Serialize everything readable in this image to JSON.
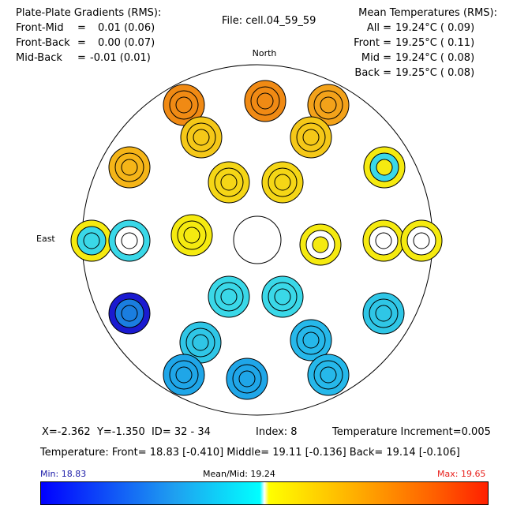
{
  "gradients": {
    "title": "Plate-Plate Gradients (RMS):",
    "rows": [
      {
        "label": "Front-Mid",
        "eq": "=",
        "value": "0.01 (0.06)"
      },
      {
        "label": "Front-Back",
        "eq": "=",
        "value": "0.00 (0.07)"
      },
      {
        "label": "Mid-Back",
        "eq": "=",
        "value": "-0.01 (0.01)"
      }
    ]
  },
  "file": "File: cell.04_59_59",
  "mean_temps": {
    "title": "Mean Temperatures (RMS):",
    "rows": [
      {
        "label": "All =",
        "value": "19.24°C ( 0.09)"
      },
      {
        "label": "Front =",
        "value": "19.25°C ( 0.11)"
      },
      {
        "label": "Mid =",
        "value": "19.24°C ( 0.08)"
      },
      {
        "label": "Back =",
        "value": "19.25°C ( 0.08)"
      }
    ]
  },
  "compass": {
    "north": "North",
    "east": "East"
  },
  "status": {
    "line1": "X=-2.362  Y=-1.350  ID= 32 - 34",
    "index": "Index: 8",
    "increment": "Temperature Increment=0.005",
    "line2": "Temperature: Front= 18.83 [-0.410] Middle= 19.11 [-0.136] Back= 19.14 [-0.106]"
  },
  "colorbar": {
    "min_label": "Min: 18.83",
    "mean_label": "Mean/Mid: 19.24",
    "max_label": "Max: 19.65",
    "min_color": "#1a1aa8",
    "max_color": "#e8201c",
    "stops": [
      "#0000ff",
      "#1fa0f0",
      "#00ffff",
      "#ffffff",
      "#ffff00",
      "#ffb000",
      "#ff6000",
      "#ff2000"
    ]
  },
  "cells": [
    {
      "id": "a",
      "rings": [
        "#f08a14",
        "#f08a14",
        "#f08a14"
      ]
    },
    {
      "id": "b",
      "rings": [
        "#f08a14",
        "#f08a14",
        "#f08a14"
      ]
    },
    {
      "id": "c",
      "rings": [
        "#f3a21a",
        "#f3a21a",
        "#f3a21a"
      ]
    },
    {
      "id": "d",
      "rings": [
        "#f5c818",
        "#f5c818",
        "#f5c818"
      ]
    },
    {
      "id": "e",
      "rings": [
        "#f5c818",
        "#f5c818",
        "#f5c818"
      ]
    },
    {
      "id": "f",
      "rings": [
        "#f5b518",
        "#f5b518",
        "#f5b518"
      ]
    },
    {
      "id": "g",
      "rings": [
        "#f5d616",
        "#f5d616",
        "#f5d616"
      ]
    },
    {
      "id": "h",
      "rings": [
        "#f5d616",
        "#f5d616",
        "#f5d616"
      ]
    },
    {
      "id": "i",
      "rings": [
        "#f5ea10",
        "#3ad8e8",
        "#f5ea10"
      ]
    },
    {
      "id": "j",
      "rings": [
        "#f5ea10",
        "#3ad8e8",
        "#3ad8e8"
      ]
    },
    {
      "id": "k",
      "rings": [
        "#3ad8e8",
        "#ffffff",
        "#ffffff"
      ]
    },
    {
      "id": "l",
      "rings": [
        "#f5ea10",
        "#f5ea10",
        "#f5ea10"
      ]
    },
    {
      "id": "m",
      "rings": [
        "#f5ea10",
        "#ffffff",
        "#f5ea10"
      ]
    },
    {
      "id": "n",
      "rings": [
        "#f5ea10",
        "#ffffff",
        "#ffffff"
      ]
    },
    {
      "id": "o",
      "rings": [
        "#f5ea10",
        "#ffffff",
        "#ffffff"
      ]
    },
    {
      "id": "p",
      "rings": [
        "#3ad8e8",
        "#3ad8e8",
        "#3ad8e8"
      ]
    },
    {
      "id": "q",
      "rings": [
        "#3ad8e8",
        "#3ad8e8",
        "#3ad8e8"
      ]
    },
    {
      "id": "r",
      "rings": [
        "#1fa6e8",
        "#1fa6e8",
        "#1fa6e8"
      ]
    },
    {
      "id": "s",
      "rings": [
        "#1a1ad0",
        "#1a7ee0",
        "#1a7ee0"
      ]
    },
    {
      "id": "t",
      "rings": [
        "#2fc6e6",
        "#2fc6e6",
        "#2fc6e6"
      ]
    },
    {
      "id": "u",
      "rings": [
        "#2fc6e6",
        "#2fc6e6",
        "#2fc6e6"
      ]
    },
    {
      "id": "v",
      "rings": [
        "#26b8ea",
        "#26b8ea",
        "#26b8ea"
      ]
    },
    {
      "id": "w",
      "rings": [
        "#1fa6e8",
        "#1fa6e8",
        "#1fa6e8"
      ]
    },
    {
      "id": "x",
      "rings": [
        "#26b8ea",
        "#26b8ea",
        "#26b8ea"
      ]
    }
  ]
}
